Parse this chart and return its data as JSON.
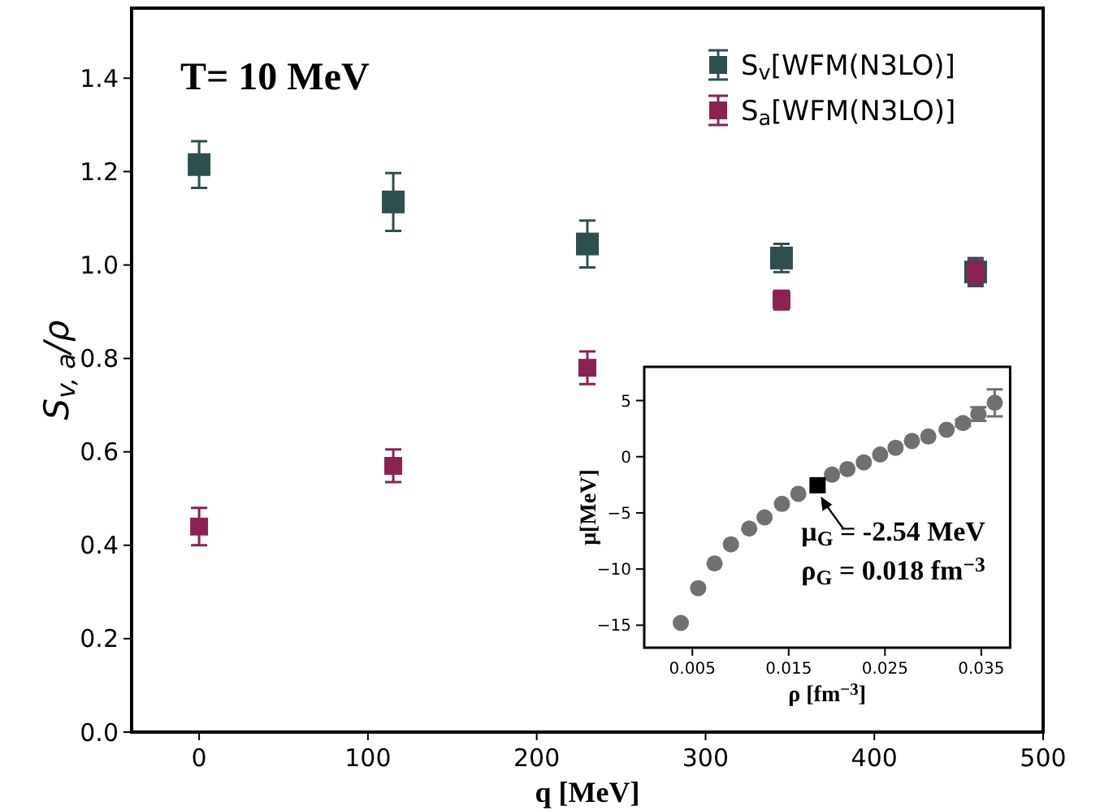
{
  "chart_data": [
    {
      "type": "scatter",
      "xlabel": "q [MeV]",
      "ylabel": "S$_{v, a}$/ρ",
      "xlim": [
        -40,
        500
      ],
      "ylim": [
        0,
        1.55
      ],
      "xticks": [
        0,
        100,
        200,
        300,
        400,
        500
      ],
      "yticks": [
        {
          "value": 0,
          "label": "0.0"
        },
        {
          "value": 0.2,
          "label": "0.2"
        },
        {
          "value": 0.4,
          "label": "0.4"
        },
        {
          "value": 0.6,
          "label": "0.6"
        },
        {
          "value": 0.8,
          "label": "0.8"
        },
        {
          "value": 1,
          "label": "1.0"
        },
        {
          "value": 1.2,
          "label": "1.2"
        },
        {
          "value": 1.4,
          "label": "1.4"
        }
      ],
      "x": [
        0,
        115,
        230,
        345,
        460
      ],
      "marker": "square",
      "legend": "top right",
      "annotations": [
        "T= 10 MeV"
      ],
      "series": [
        {
          "name": "S$_{v}$[WFM(N3LO)]",
          "color": "#2f4f4f",
          "values": [
            1.215,
            1.135,
            1.045,
            1.015,
            0.985
          ],
          "errors": [
            0.05,
            0.062,
            0.05,
            0.03,
            0.03
          ]
        },
        {
          "name": "S$_{a}$[WFM(N3LO)]",
          "color": "#8b2252",
          "values": [
            0.44,
            0.57,
            0.78,
            0.925,
            0.985
          ],
          "errors": [
            0.04,
            0.035,
            0.035,
            0.02,
            0.025
          ]
        }
      ]
    },
    {
      "type": "scatter",
      "xlabel": "ρ [fm$^{−3}$]",
      "ylabel": "μ[MeV]",
      "xlim": [
        0,
        0.038
      ],
      "ylim": [
        -17,
        8
      ],
      "xticks": [
        0.005,
        0.015,
        0.025,
        0.035
      ],
      "yticks": [
        {
          "value": -15,
          "label": "−15"
        },
        {
          "value": -10,
          "label": "−10"
        },
        {
          "value": -5,
          "label": "−5"
        },
        {
          "value": 0,
          "label": "0"
        },
        {
          "value": 5,
          "label": "5"
        }
      ],
      "marker": "circle",
      "annotations": [
        {
          "text": "μ$_{G}$ = -2.54 MeV",
          "x": 0.018,
          "y": -2.54
        },
        {
          "text": "ρ$_{G}$ = 0.018 fm$^{−3}$",
          "x": 0.018,
          "y": -2.54
        }
      ],
      "series": [
        {
          "color": "#707070",
          "x": [
            0.0038,
            0.0056,
            0.0073,
            0.009,
            0.0109,
            0.0125,
            0.0143,
            0.016,
            0.0195,
            0.0211,
            0.0228,
            0.0245,
            0.0261,
            0.0278,
            0.0295,
            0.0314,
            0.0331,
            0.0347,
            0.0364
          ],
          "values": [
            -14.8,
            -11.7,
            -9.5,
            -7.8,
            -6.4,
            -5.4,
            -4.2,
            -3.3,
            -1.6,
            -1.1,
            -0.5,
            0.2,
            0.8,
            1.4,
            1.8,
            2.4,
            3.0,
            3.8,
            4.8
          ],
          "errors": [
            null,
            null,
            null,
            null,
            null,
            null,
            null,
            null,
            null,
            null,
            null,
            null,
            null,
            null,
            null,
            null,
            0.3,
            0.6,
            1.2
          ]
        },
        {
          "color": "#000000",
          "marker": "square",
          "x": [
            0.018
          ],
          "values": [
            -2.54
          ]
        }
      ]
    }
  ]
}
